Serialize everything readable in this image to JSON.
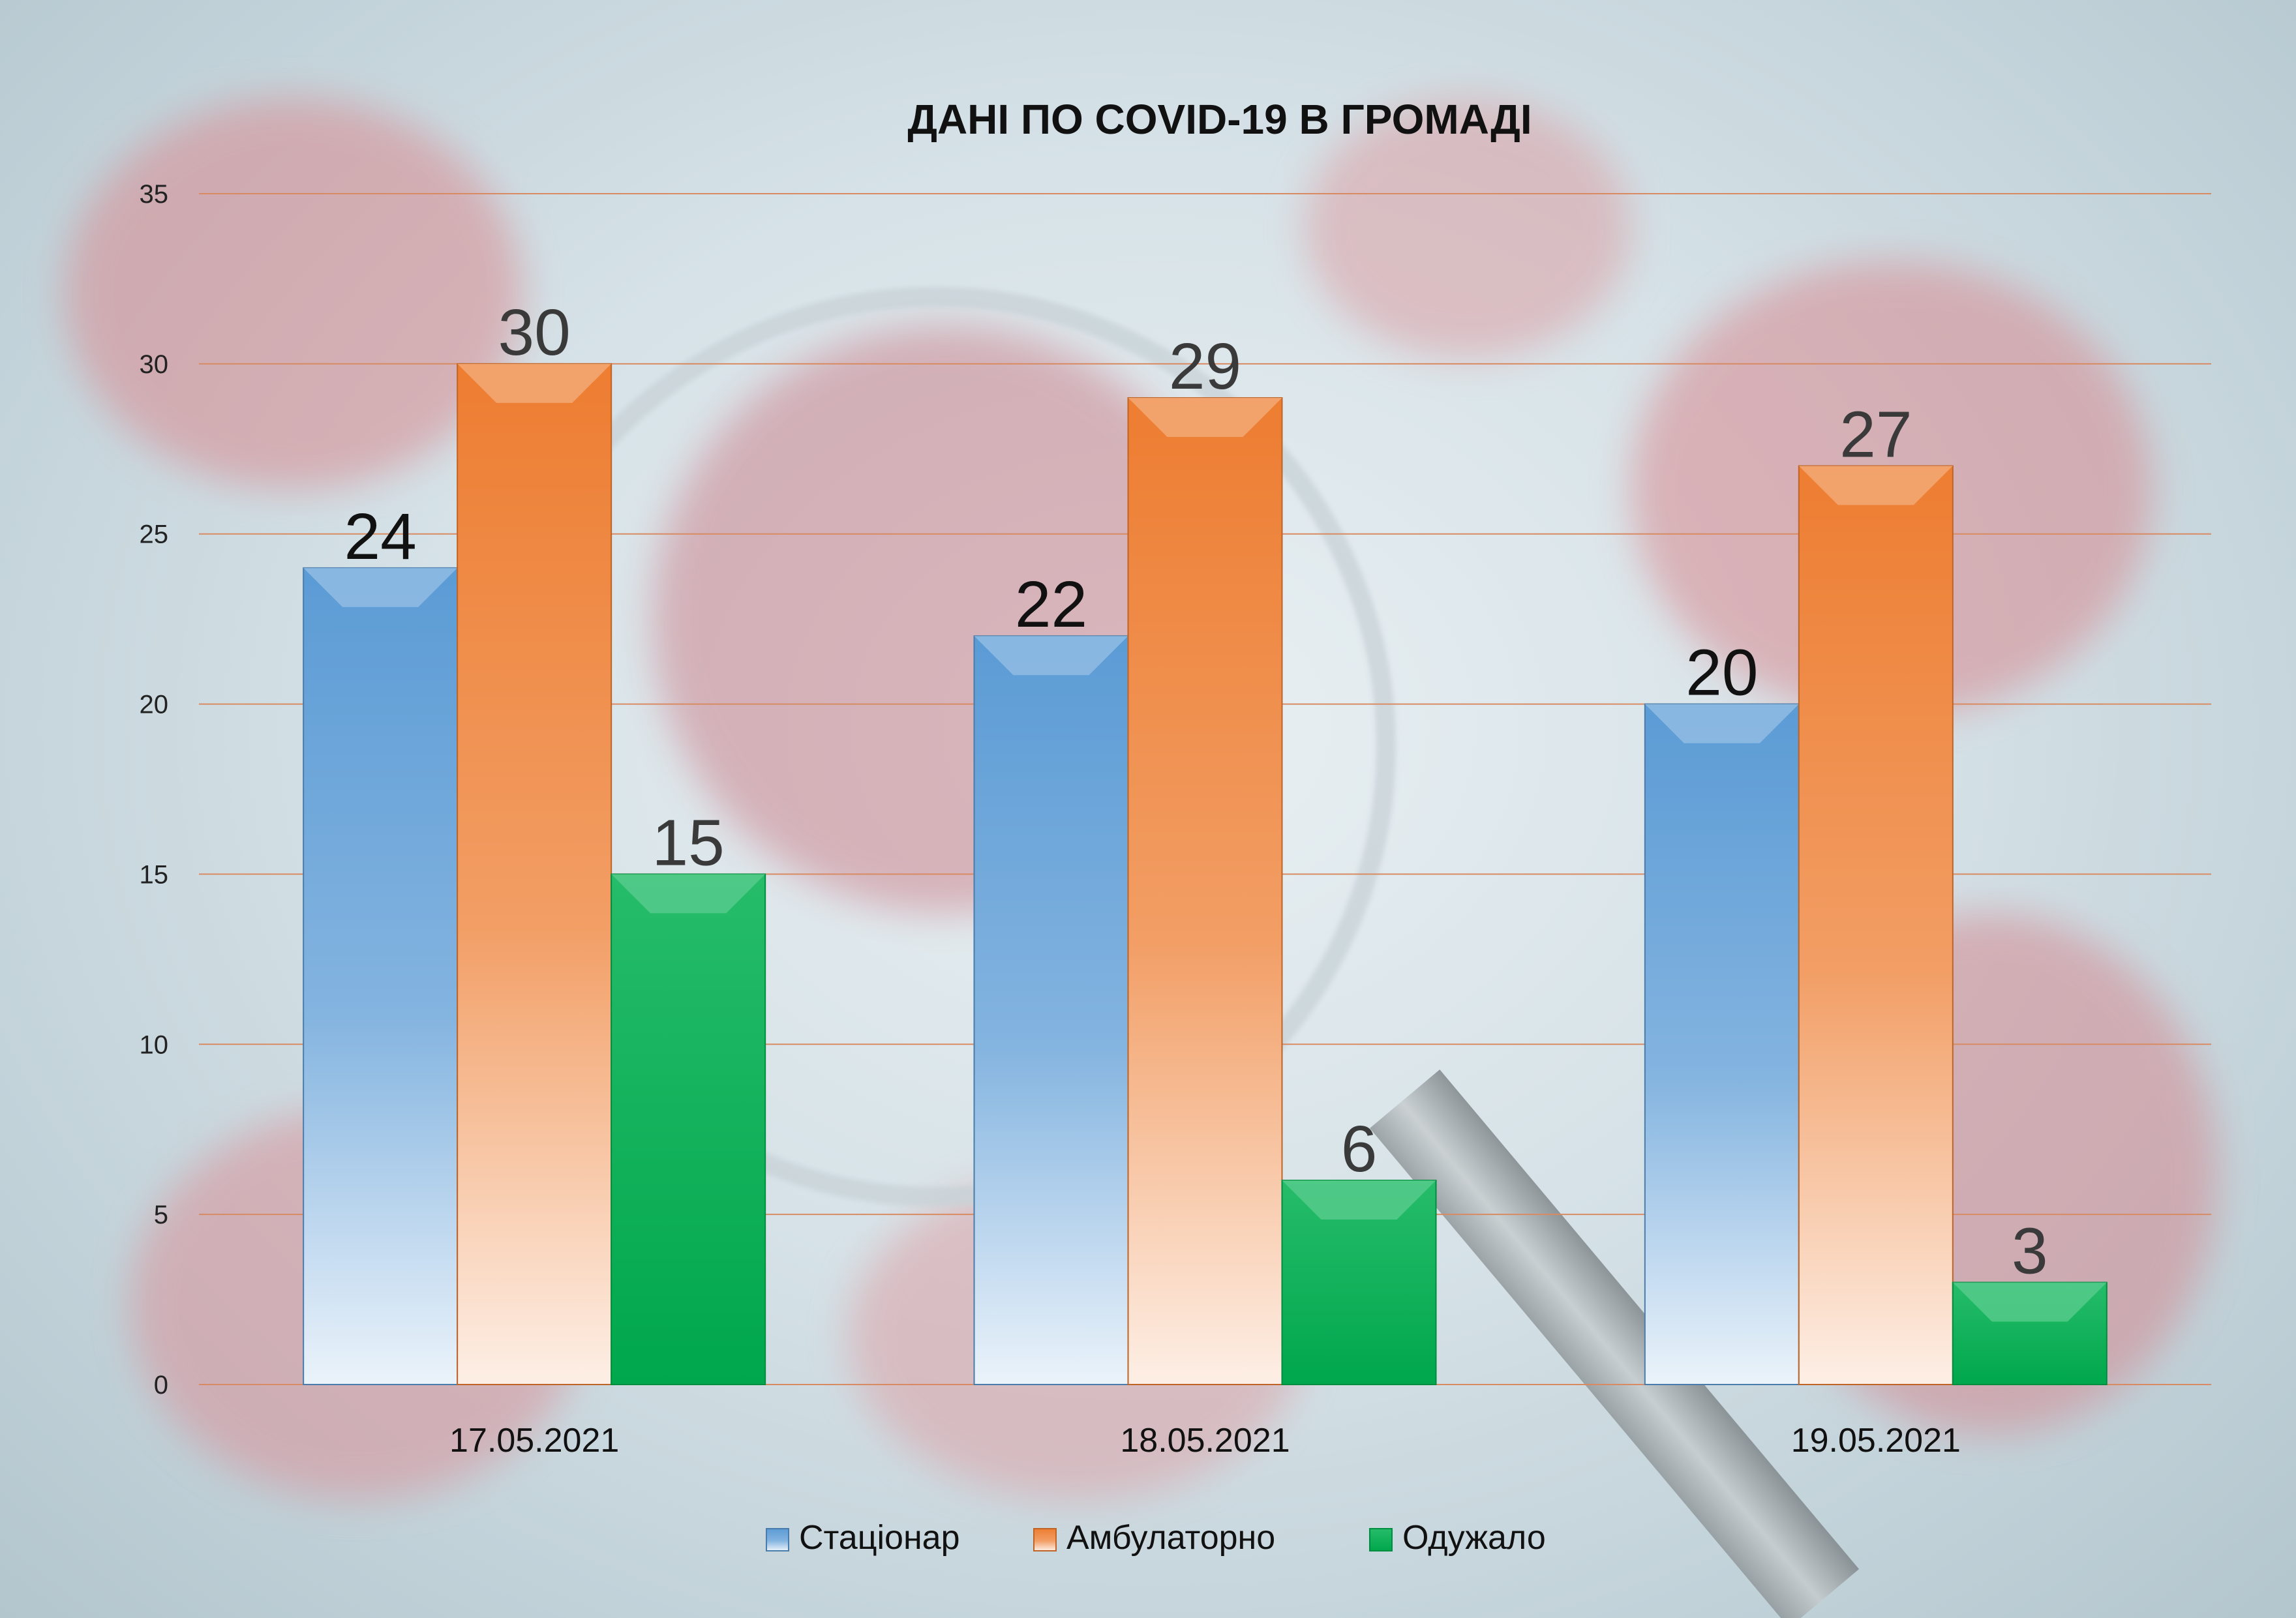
{
  "chart_data": {
    "type": "bar",
    "title": "ДАНІ ПО COVID-19 В ГРОМАДІ",
    "categories": [
      "17.05.2021",
      "18.05.2021",
      "19.05.2021"
    ],
    "series": [
      {
        "name": "Стаціонар",
        "values": [
          24,
          22,
          20
        ],
        "color": "#5b9bd5"
      },
      {
        "name": "Амбулаторно",
        "values": [
          30,
          29,
          27
        ],
        "color": "#ed7d31"
      },
      {
        "name": "Одужало",
        "values": [
          15,
          6,
          3
        ],
        "color": "#00b050"
      }
    ],
    "y_ticks": [
      "0",
      "5",
      "10",
      "15",
      "20",
      "25",
      "30",
      "35"
    ],
    "ylim": [
      0,
      35
    ],
    "grid": true,
    "legend_position": "bottom",
    "data_labels": true,
    "gridline_color": "#d88b63"
  }
}
